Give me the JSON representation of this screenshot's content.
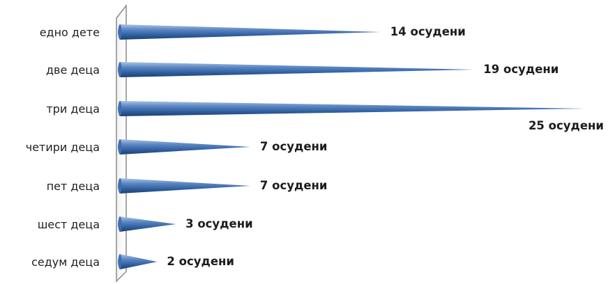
{
  "chart_data": {
    "type": "bar",
    "orientation": "horizontal",
    "bar_style": "cone",
    "color": "#2f5f9f",
    "unit_suffix": "осудени",
    "categories": [
      "едно дете",
      "две деца",
      "три деца",
      "четири деца",
      "пет деца",
      "шест деца",
      "седум деца"
    ],
    "values": [
      14,
      19,
      25,
      7,
      7,
      3,
      2
    ],
    "data_labels": [
      "14 осудени",
      "19 осудени",
      "25 осудени",
      "7 осудени",
      "7 осудени",
      "3 осудени",
      "2 осудени"
    ],
    "xlim": [
      0,
      25
    ],
    "title": "",
    "xlabel": "",
    "ylabel": "",
    "grid": false,
    "legend": "none"
  }
}
